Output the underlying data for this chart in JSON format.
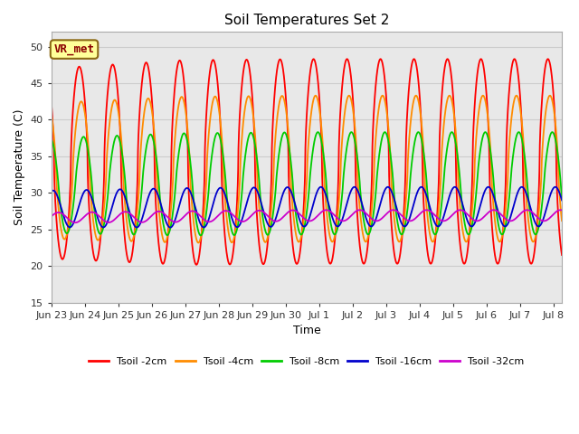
{
  "title": "Soil Temperatures Set 2",
  "xlabel": "Time",
  "ylabel": "Soil Temperature (C)",
  "ylim": [
    15,
    52
  ],
  "yticks": [
    15,
    20,
    25,
    30,
    35,
    40,
    45,
    50
  ],
  "annotation_text": "VR_met",
  "annotation_bbox": {
    "boxstyle": "round,pad=0.3",
    "facecolor": "#FFFF99",
    "edgecolor": "#8B6914",
    "linewidth": 1.5
  },
  "legend_entries": [
    {
      "label": "Tsoil -2cm",
      "color": "#FF0000"
    },
    {
      "label": "Tsoil -4cm",
      "color": "#FF8C00"
    },
    {
      "label": "Tsoil -8cm",
      "color": "#00CC00"
    },
    {
      "label": "Tsoil -16cm",
      "color": "#0000CC"
    },
    {
      "label": "Tsoil -32cm",
      "color": "#CC00CC"
    }
  ],
  "grid_color": "#CCCCCC",
  "plot_bg_color": "#E8E8E8",
  "fig_bg_color": "#FFFFFF",
  "line_width": 1.3,
  "n_days": 15.25,
  "pts_per_day": 240,
  "depth_params": [
    {
      "key": "2cm",
      "amplitude": 14.0,
      "mean": 34.0,
      "lag": 0.0,
      "sharpness": 1.6,
      "color": "#FF0000"
    },
    {
      "key": "4cm",
      "amplitude": 10.0,
      "mean": 33.0,
      "lag": 0.06,
      "sharpness": 1.4,
      "color": "#FF8C00"
    },
    {
      "key": "8cm",
      "amplitude": 7.0,
      "mean": 31.0,
      "lag": 0.13,
      "sharpness": 1.2,
      "color": "#00CC00"
    },
    {
      "key": "16cm",
      "amplitude": 2.7,
      "mean": 27.8,
      "lag": 0.22,
      "sharpness": 1.0,
      "color": "#0000CC"
    },
    {
      "key": "32cm",
      "amplitude": 0.75,
      "mean": 26.6,
      "lag": 0.38,
      "sharpness": 1.0,
      "color": "#CC00CC"
    }
  ],
  "x_tick_labels": [
    "Jun 23",
    "Jun 24",
    "Jun 25",
    "Jun 26",
    "Jun 27",
    "Jun 28",
    "Jun 29",
    "Jun 30",
    "Jul 1",
    "Jul 2",
    "Jul 3",
    "Jul 4",
    "Jul 5",
    "Jul 6",
    "Jul 7",
    "Jul 8"
  ],
  "x_tick_positions": [
    0,
    1,
    2,
    3,
    4,
    5,
    6,
    7,
    8,
    9,
    10,
    11,
    12,
    13,
    14,
    15
  ],
  "peak_phase": 0.583
}
